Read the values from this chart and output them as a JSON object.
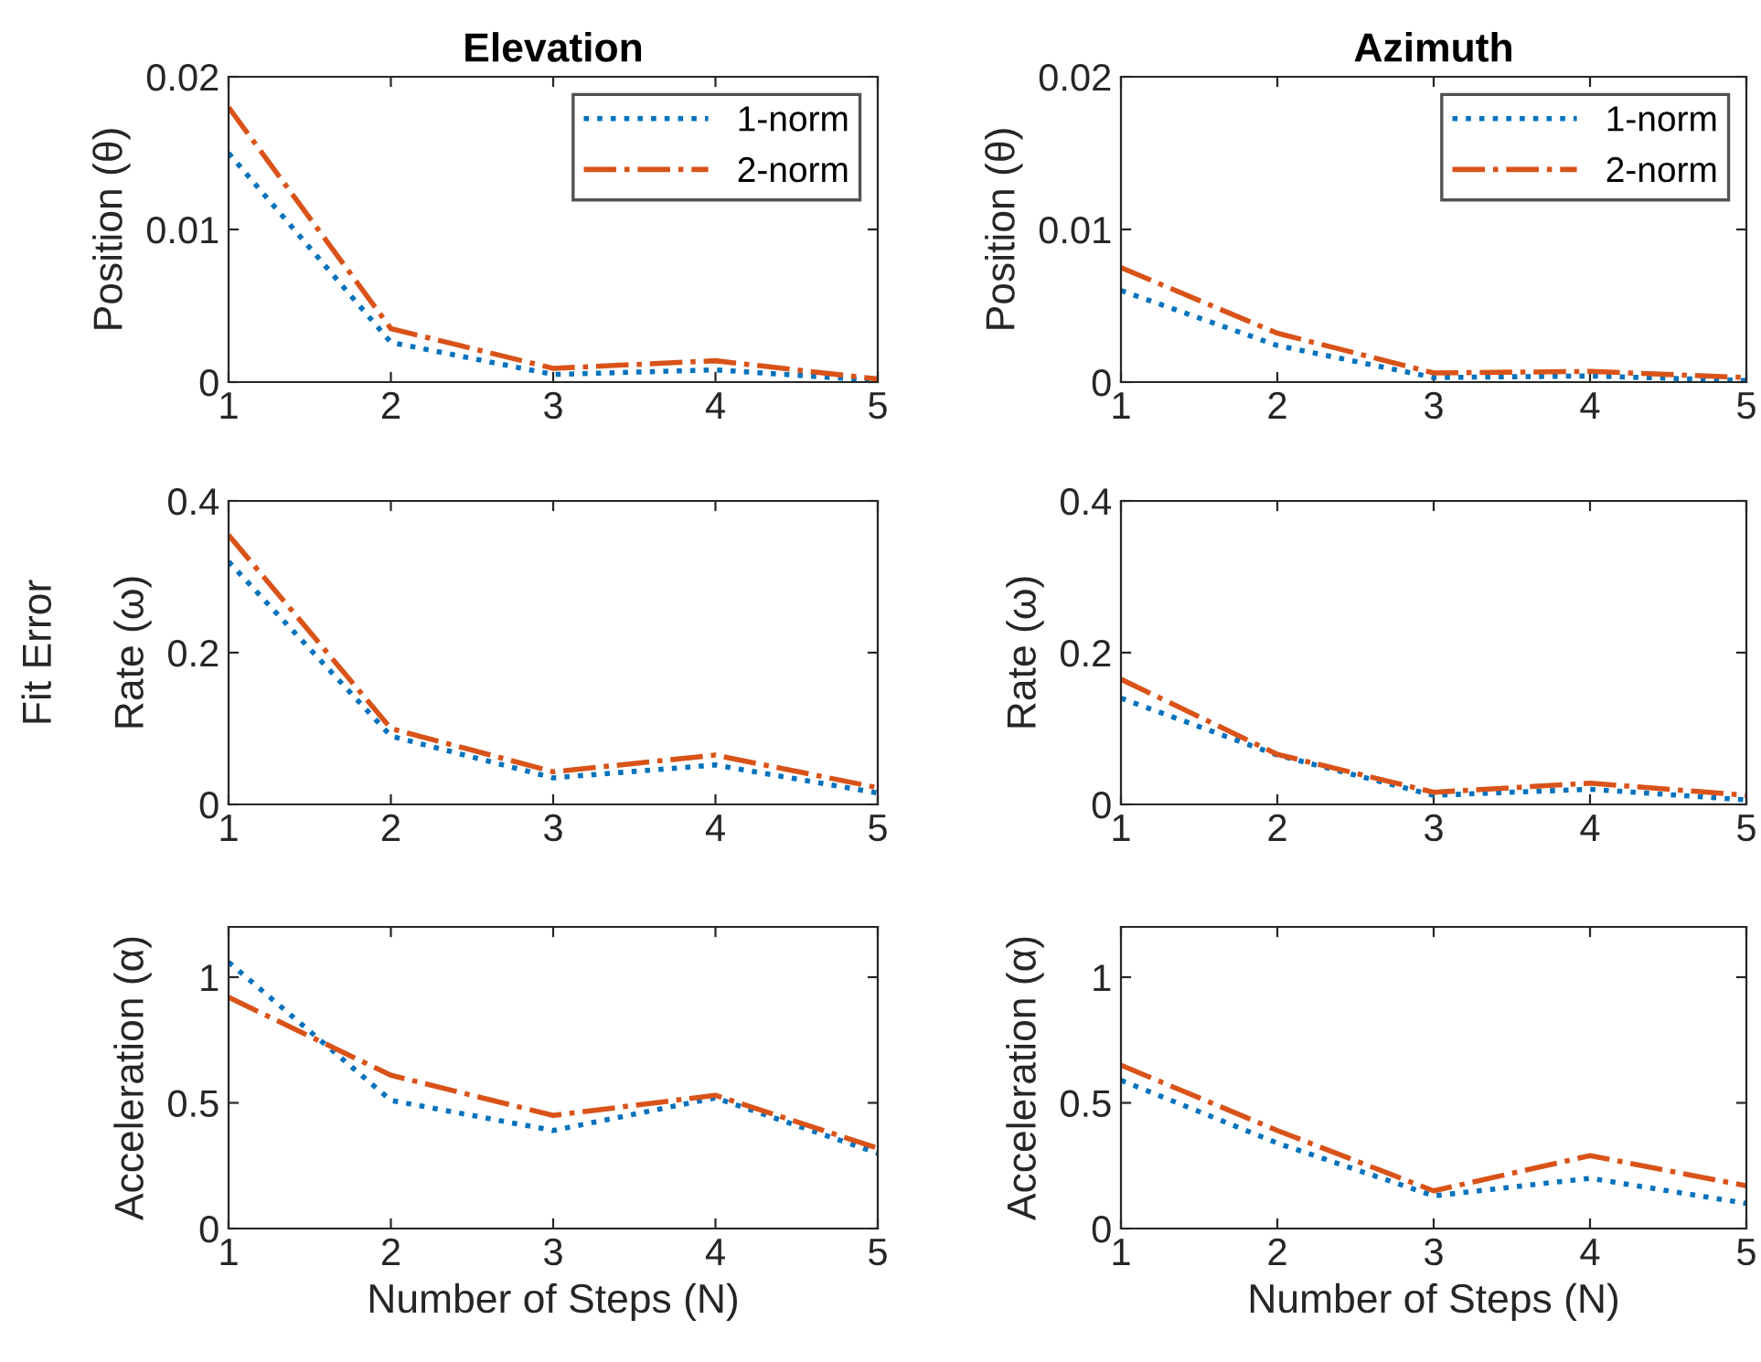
{
  "chart_data": [
    {
      "type": "line",
      "title": "Elevation",
      "ylabel": "Position (θ)",
      "x": [
        1,
        2,
        3,
        4,
        5
      ],
      "xlim": [
        1,
        5
      ],
      "xticks": [
        1,
        2,
        3,
        4,
        5
      ],
      "ylim": [
        0,
        0.02
      ],
      "yticks": [
        0,
        0.01,
        0.02
      ],
      "legend": "top right",
      "grid": false,
      "series": [
        {
          "name": "1-norm",
          "color": "#0072bd",
          "line_style": "dotted",
          "values": [
            0.015,
            0.0026,
            0.0005,
            0.0008,
            0.0001
          ]
        },
        {
          "name": "2-norm",
          "color": "#d95319",
          "line_style": "dashdot",
          "values": [
            0.018,
            0.0035,
            0.0009,
            0.0014,
            0.0002
          ]
        }
      ]
    },
    {
      "type": "line",
      "title": "Azimuth",
      "ylabel": "Position (θ)",
      "x": [
        1,
        2,
        3,
        4,
        5
      ],
      "xlim": [
        1,
        5
      ],
      "xticks": [
        1,
        2,
        3,
        4,
        5
      ],
      "ylim": [
        0,
        0.02
      ],
      "yticks": [
        0,
        0.01,
        0.02
      ],
      "legend": "top right",
      "grid": false,
      "series": [
        {
          "name": "1-norm",
          "color": "#0072bd",
          "line_style": "dotted",
          "values": [
            0.006,
            0.0024,
            0.0003,
            0.0004,
            0.0001
          ]
        },
        {
          "name": "2-norm",
          "color": "#d95319",
          "line_style": "dashdot",
          "values": [
            0.0075,
            0.0032,
            0.0006,
            0.0007,
            0.0003
          ]
        }
      ]
    },
    {
      "type": "line",
      "ylabel": "Rate (ω)",
      "annotations": [
        "Fit Error"
      ],
      "x": [
        1,
        2,
        3,
        4,
        5
      ],
      "xlim": [
        1,
        5
      ],
      "xticks": [
        1,
        2,
        3,
        4,
        5
      ],
      "ylim": [
        0,
        0.4
      ],
      "yticks": [
        0,
        0.2,
        0.4
      ],
      "grid": false,
      "series": [
        {
          "color": "#0072bd",
          "line_style": "dotted",
          "values": [
            0.32,
            0.09,
            0.035,
            0.052,
            0.015
          ]
        },
        {
          "color": "#d95319",
          "line_style": "dashdot",
          "values": [
            0.355,
            0.1,
            0.043,
            0.065,
            0.022
          ]
        }
      ]
    },
    {
      "type": "line",
      "ylabel": "Rate (ω)",
      "x": [
        1,
        2,
        3,
        4,
        5
      ],
      "xlim": [
        1,
        5
      ],
      "xticks": [
        1,
        2,
        3,
        4,
        5
      ],
      "ylim": [
        0,
        0.4
      ],
      "yticks": [
        0,
        0.2,
        0.4
      ],
      "grid": false,
      "series": [
        {
          "color": "#0072bd",
          "line_style": "dotted",
          "values": [
            0.14,
            0.065,
            0.012,
            0.02,
            0.006
          ]
        },
        {
          "color": "#d95319",
          "line_style": "dashdot",
          "values": [
            0.165,
            0.066,
            0.016,
            0.028,
            0.012
          ]
        }
      ]
    },
    {
      "type": "line",
      "xlabel": "Number of Steps (N)",
      "ylabel": "Acceleration (α)",
      "x": [
        1,
        2,
        3,
        4,
        5
      ],
      "xlim": [
        1,
        5
      ],
      "xticks": [
        1,
        2,
        3,
        4,
        5
      ],
      "ylim": [
        0,
        1.2
      ],
      "yticks": [
        0,
        0.5,
        1
      ],
      "grid": false,
      "series": [
        {
          "color": "#0072bd",
          "line_style": "dotted",
          "values": [
            1.06,
            0.51,
            0.39,
            0.52,
            0.3
          ]
        },
        {
          "color": "#d95319",
          "line_style": "dashdot",
          "values": [
            0.92,
            0.61,
            0.45,
            0.53,
            0.32
          ]
        }
      ]
    },
    {
      "type": "line",
      "xlabel": "Number of Steps (N)",
      "ylabel": "Acceleration (α)",
      "x": [
        1,
        2,
        3,
        4,
        5
      ],
      "xlim": [
        1,
        5
      ],
      "xticks": [
        1,
        2,
        3,
        4,
        5
      ],
      "ylim": [
        0,
        1.2
      ],
      "yticks": [
        0,
        0.5,
        1
      ],
      "grid": false,
      "series": [
        {
          "color": "#0072bd",
          "line_style": "dotted",
          "values": [
            0.59,
            0.34,
            0.13,
            0.2,
            0.1
          ]
        },
        {
          "color": "#d95319",
          "line_style": "dashdot",
          "values": [
            0.65,
            0.39,
            0.15,
            0.29,
            0.17
          ]
        }
      ]
    }
  ]
}
